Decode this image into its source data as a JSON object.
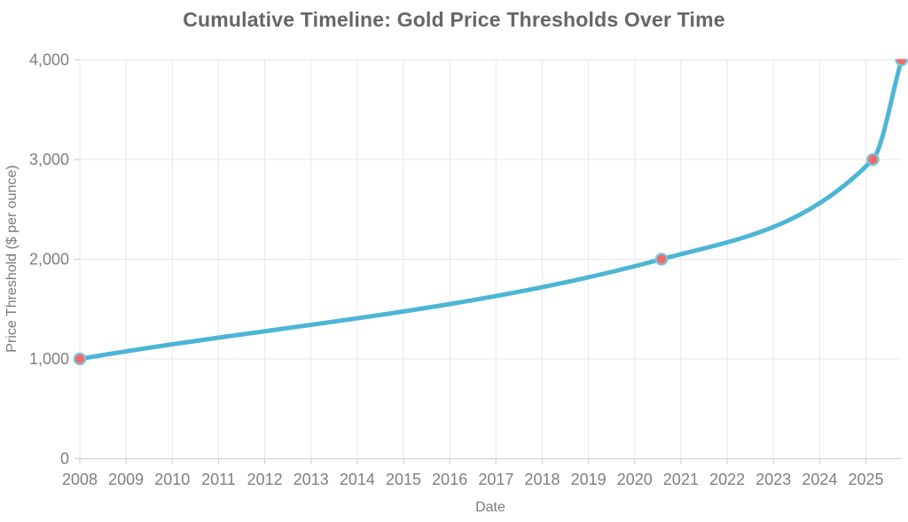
{
  "chart_data": {
    "type": "line",
    "title": "Cumulative Timeline: Gold Price Thresholds Over Time",
    "xlabel": "Date",
    "ylabel": "Price Threshold ($ per ounce)",
    "x_domain": [
      2008.0,
      2025.77
    ],
    "y_domain": [
      0,
      4000
    ],
    "x_ticks": [
      2008,
      2009,
      2010,
      2011,
      2012,
      2013,
      2014,
      2015,
      2016,
      2017,
      2018,
      2019,
      2020,
      2021,
      2022,
      2023,
      2024,
      2025
    ],
    "y_ticks": {
      "values": [
        0,
        1000,
        2000,
        3000,
        4000
      ],
      "labels": [
        "0",
        "1,000",
        "2,000",
        "3,000",
        "4,000"
      ]
    },
    "grid": true,
    "legend": "none",
    "line_shape": "monotone-spline",
    "series": [
      {
        "points": [
          {
            "x": 2008.0,
            "y": 1000
          },
          {
            "x": 2020.58,
            "y": 2000
          },
          {
            "x": 2025.15,
            "y": 3000
          },
          {
            "x": 2025.77,
            "y": 4000
          }
        ]
      }
    ],
    "colors": {
      "line": "#4db5d4",
      "marker_fill": "#f16a6a",
      "marker_stroke": "#79c6dd",
      "grid": "#e7e7e7",
      "axis": "#d2d2d2",
      "tick_text": "#7f7f7f",
      "axis_title_text": "#7a7a7a",
      "title_text": "#666666",
      "background": "#ffffff"
    }
  }
}
